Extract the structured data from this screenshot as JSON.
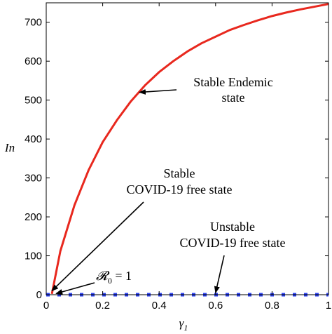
{
  "chart_data": {
    "type": "line",
    "title": "",
    "xlabel": "γ",
    "xlabel_sub": "1",
    "ylabel": "In",
    "xlim": [
      0,
      1
    ],
    "ylim": [
      0,
      750
    ],
    "x_ticks": [
      0,
      0.2,
      0.4,
      0.6,
      0.8,
      1
    ],
    "x_tick_labels": [
      "0",
      "0.2",
      "0.4",
      "0.6",
      "0.8",
      "1"
    ],
    "y_ticks": [
      0,
      100,
      200,
      300,
      400,
      500,
      600,
      700
    ],
    "y_tick_labels": [
      "0",
      "100",
      "200",
      "300",
      "400",
      "500",
      "600",
      "700"
    ],
    "grid": false,
    "series": [
      {
        "color": "#e8281e",
        "style": "solid",
        "x": [
          0.02,
          0.05,
          0.1,
          0.15,
          0.2,
          0.25,
          0.3,
          0.35,
          0.4,
          0.45,
          0.5,
          0.55,
          0.6,
          0.65,
          0.7,
          0.75,
          0.8,
          0.85,
          0.9,
          0.95,
          1.0
        ],
        "y": [
          2,
          112,
          230,
          320,
          392,
          448,
          497,
          538,
          572,
          600,
          625,
          646,
          663,
          680,
          693,
          705,
          716,
          725,
          733,
          740,
          747
        ]
      },
      {
        "color": "#2a3ff0",
        "style": "dotted",
        "x": [
          0.0,
          0.05,
          0.1,
          0.15,
          0.2,
          0.25,
          0.3,
          0.35,
          0.4,
          0.45,
          0.5,
          0.55,
          0.6,
          0.65,
          0.7,
          0.75,
          0.8,
          0.85,
          0.9,
          0.95,
          1.0
        ],
        "y": [
          0,
          0,
          0,
          0,
          0,
          0,
          0,
          0,
          0,
          0,
          0,
          0,
          0,
          0,
          0,
          0,
          0,
          0,
          0,
          0,
          0
        ]
      }
    ],
    "annotations": [
      {
        "id": "endemic",
        "lines": [
          "Stable Endemic",
          "state"
        ],
        "target": [
          0.33,
          520
        ]
      },
      {
        "id": "stable-free",
        "lines": [
          "Stable",
          "COVID-19 free state"
        ],
        "target": [
          0.02,
          10
        ]
      },
      {
        "id": "unstable-free",
        "lines": [
          "Unstable",
          "COVID-19 free state"
        ],
        "target": [
          0.6,
          5
        ]
      },
      {
        "id": "r0",
        "text": "𝓡",
        "sub": "0",
        "rest": " = 1",
        "target": [
          0.035,
          3
        ]
      }
    ]
  }
}
